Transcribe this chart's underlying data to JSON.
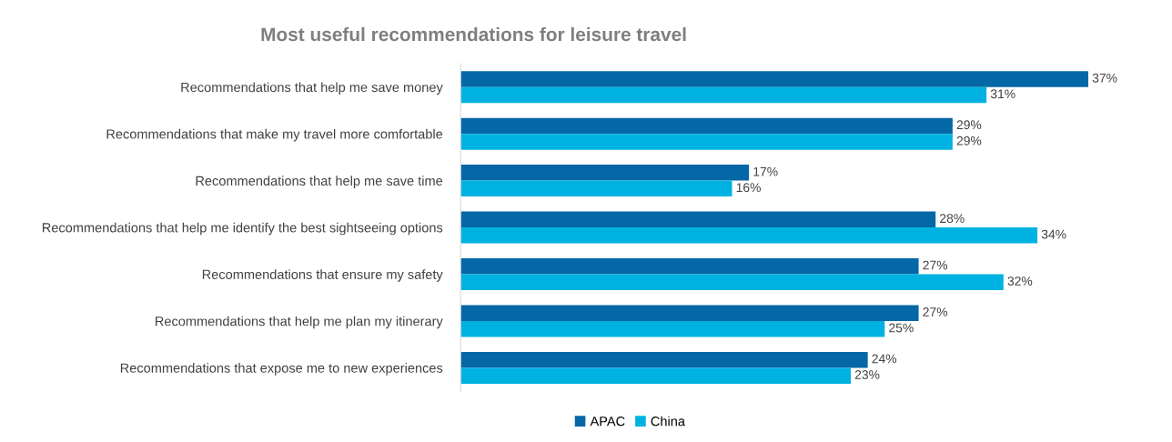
{
  "chart_data": {
    "type": "bar",
    "orientation": "horizontal",
    "title": "Most useful recommendations for leisure travel",
    "categories": [
      "Recommendations that help me save money",
      "Recommendations that make my travel more comfortable",
      "Recommendations that help me save time",
      "Recommendations that help me identify the best sightseeing options",
      "Recommendations that ensure my safety",
      "Recommendations that help me plan my itinerary",
      "Recommendations that expose me to new experiences"
    ],
    "series": [
      {
        "name": "APAC",
        "color": "#0467a6",
        "values": [
          37,
          29,
          17,
          28,
          27,
          27,
          24
        ],
        "value_labels": [
          "37%",
          "29%",
          "17%",
          "28%",
          "27%",
          "27%",
          "24%"
        ]
      },
      {
        "name": "China",
        "color": "#00b2e2",
        "values": [
          31,
          29,
          16,
          34,
          32,
          25,
          23
        ],
        "value_labels": [
          "31%",
          "29%",
          "16%",
          "34%",
          "32%",
          "25%",
          "23%"
        ]
      }
    ],
    "legend": "bottom",
    "grid": false,
    "tick_labels": "y"
  }
}
